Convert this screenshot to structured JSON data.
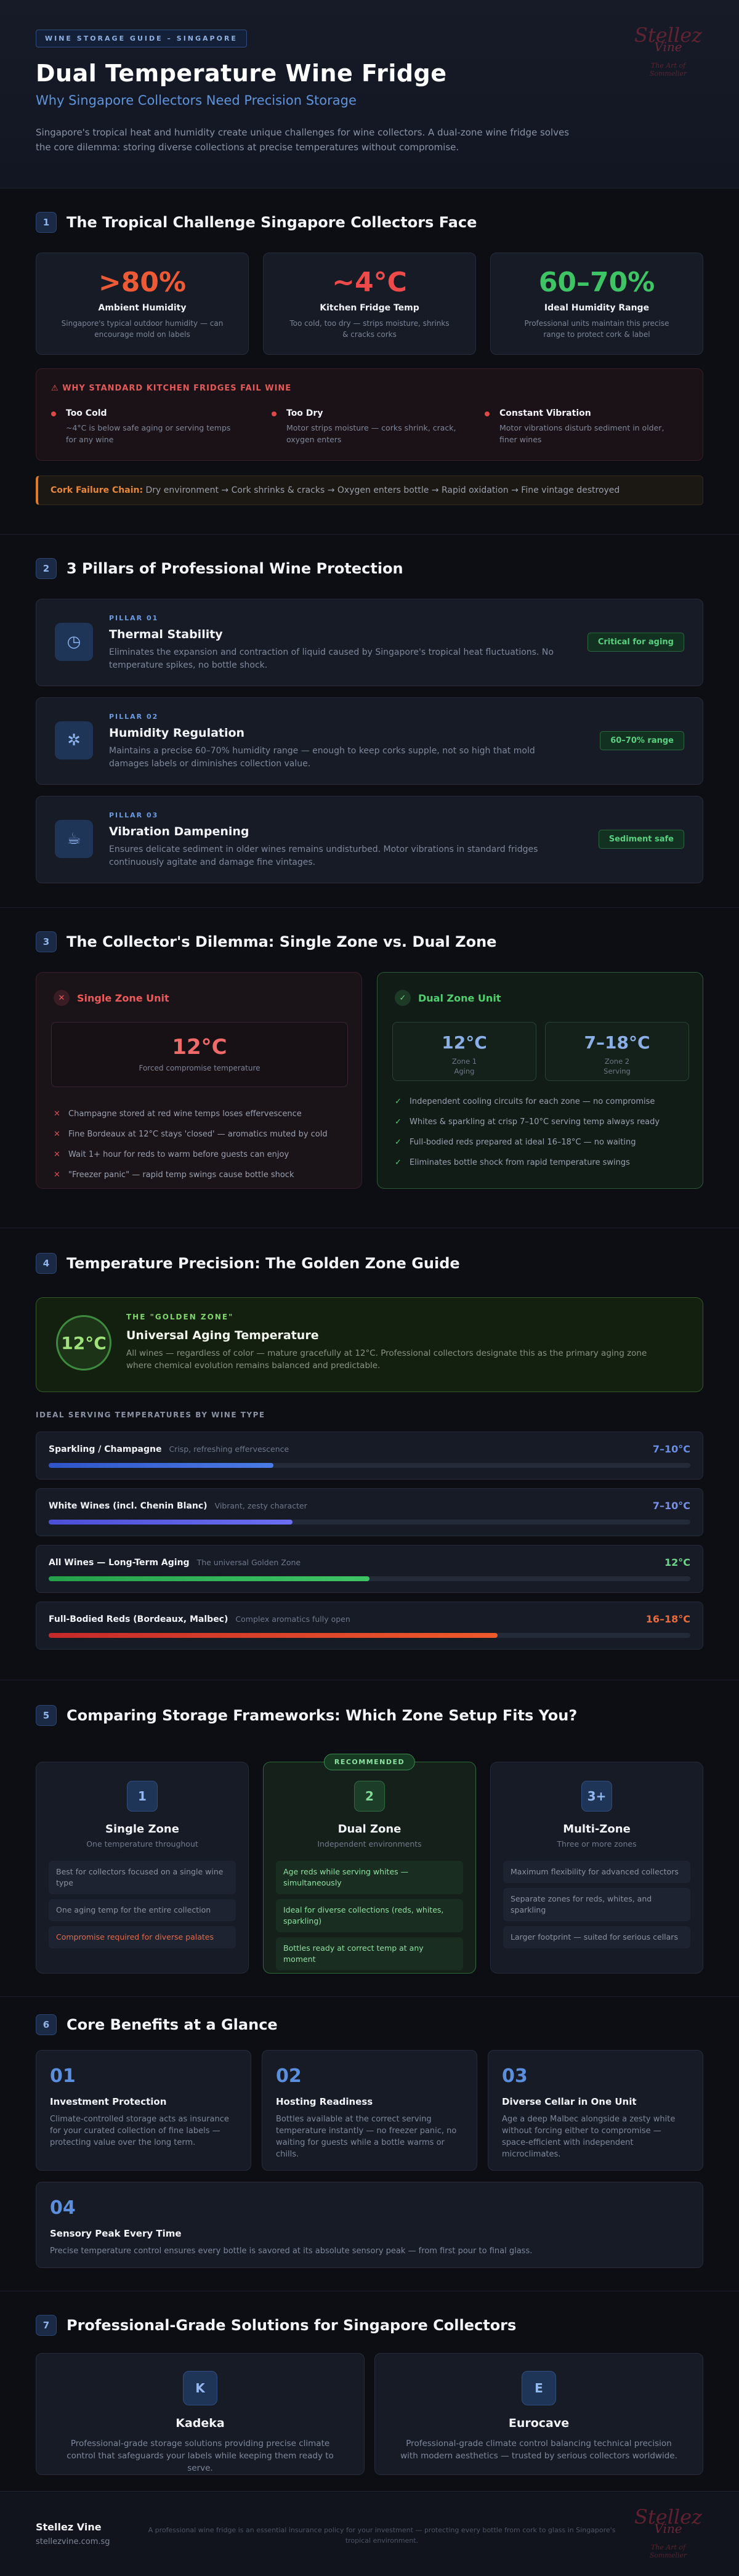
{
  "hero": {
    "tag": "WINE STORAGE GUIDE – SINGAPORE",
    "title": "Dual Temperature Wine Fridge",
    "subtitle": "Why Singapore Collectors Need Precision Storage",
    "description": "Singapore's tropical heat and humidity create unique challenges for wine collectors. A dual-zone wine fridge solves the core dilemma: storing diverse collections at precise temperatures without compromise.",
    "logo": {
      "line1": "Stellez",
      "line2": "Vine",
      "tagline": "The Art of Sommelier"
    }
  },
  "s1": {
    "num": "1",
    "title": "The Tropical Challenge Singapore Collectors Face",
    "stats": [
      {
        "value": ">80%",
        "label": "Ambient Humidity",
        "desc": "Singapore's typical outdoor humidity — can encourage mold on labels",
        "color": "#ee5a35"
      },
      {
        "value": "~4°C",
        "label": "Kitchen Fridge Temp",
        "desc": "Too cold, too dry — strips moisture, shrinks & cracks corks",
        "color": "#ee4a4a"
      },
      {
        "value": "60–70%",
        "label": "Ideal Humidity Range",
        "desc": "Professional units maintain this precise range to protect cork & label",
        "color": "#3fc465"
      }
    ],
    "why_title": "WHY STANDARD KITCHEN FRIDGES FAIL WINE",
    "why": [
      {
        "title": "Too Cold",
        "desc": "~4°C is below safe aging or serving temps for any wine"
      },
      {
        "title": "Too Dry",
        "desc": "Motor strips moisture — corks shrink, crack, oxygen enters"
      },
      {
        "title": "Constant Vibration",
        "desc": "Motor vibrations disturb sediment in older, finer wines"
      }
    ],
    "chain_label": "Cork Failure Chain:",
    "chain_text": "Dry environment → Cork shrinks & cracks → Oxygen enters bottle → Rapid oxidation → Fine vintage destroyed"
  },
  "s2": {
    "num": "2",
    "title": "3 Pillars of Professional Wine Protection",
    "pillars": [
      {
        "tag": "PILLAR 01",
        "title": "Thermal Stability",
        "desc": "Eliminates the expansion and contraction of liquid caused by Singapore's tropical heat fluctuations. No temperature spikes, no bottle shock.",
        "badge": "Critical for aging",
        "icon": "clock-icon",
        "glyph": "◷"
      },
      {
        "tag": "PILLAR 02",
        "title": "Humidity Regulation",
        "desc": "Maintains a precise 60–70% humidity range — enough to keep corks supple, not so high that mold damages labels or diminishes collection value.",
        "badge": "60–70% range",
        "icon": "gear-icon",
        "glyph": "✲"
      },
      {
        "tag": "PILLAR 03",
        "title": "Vibration Dampening",
        "desc": "Ensures delicate sediment in older wines remains undisturbed. Motor vibrations in standard fridges continuously agitate and damage fine vintages.",
        "badge": "Sediment safe",
        "icon": "cup-icon",
        "glyph": "☕"
      }
    ]
  },
  "s3": {
    "num": "3",
    "title": "The Collector's Dilemma: Single Zone vs. Dual Zone",
    "single": {
      "title": "Single Zone Unit",
      "temp": "12°C",
      "temp_label": "Forced compromise temperature",
      "items": [
        "Champagne stored at red wine temps loses effervescence",
        "Fine Bordeaux at 12°C stays 'closed' — aromatics muted by cold",
        "Wait 1+ hour for reds to warm before guests can enjoy",
        "\"Freezer panic\" — rapid temp swings cause bottle shock"
      ]
    },
    "dual": {
      "title": "Dual Zone Unit",
      "zone1_temp": "12°C",
      "zone1_label": "Zone 1",
      "zone1_sub": "Aging",
      "zone2_temp": "7–18°C",
      "zone2_label": "Zone 2",
      "zone2_sub": "Serving",
      "items": [
        "Independent cooling circuits for each zone — no compromise",
        "Whites & sparkling at crisp 7–10°C serving temp always ready",
        "Full-bodied reds prepared at ideal 16–18°C — no waiting",
        "Eliminates bottle shock from rapid temperature swings"
      ]
    }
  },
  "s4": {
    "num": "4",
    "title": "Temperature Precision: The Golden Zone Guide",
    "golden": {
      "temp": "12°C",
      "tag": "THE \"GOLDEN ZONE\"",
      "title": "Universal Aging Temperature",
      "desc": "All wines — regardless of color — mature gracefully at 12°C. Professional collectors designate this as the primary aging zone where chemical evolution remains balanced and predictable."
    },
    "subhead": "IDEAL SERVING TEMPERATURES BY WINE TYPE",
    "serving": [
      {
        "name": "Sparkling / Champagne",
        "note": "Crisp, refreshing effervescence",
        "temp": "7–10°C",
        "color": "#6b8fe8",
        "fill": 0.35,
        "bar": "linear-gradient(90deg,#2f55c8,#4a7be6)"
      },
      {
        "name": "White Wines (incl. Chenin Blanc)",
        "note": "Vibrant, zesty character",
        "temp": "7–10°C",
        "color": "#7a8fe8",
        "fill": 0.38,
        "bar": "linear-gradient(90deg,#4a4fd6,#6a6ef0)"
      },
      {
        "name": "All Wines — Long-Term Aging",
        "note": "The universal Golden Zone",
        "temp": "12°C",
        "color": "#6ed68a",
        "fill": 0.5,
        "bar": "linear-gradient(90deg,#23a04a,#3fc465)"
      },
      {
        "name": "Full-Bodied Reds (Bordeaux, Malbec)",
        "note": "Complex aromatics fully open",
        "temp": "16–18°C",
        "color": "#ee6a3a",
        "fill": 0.7,
        "bar": "linear-gradient(90deg,#c42a2a,#ee5a2a)"
      }
    ]
  },
  "s5": {
    "num": "5",
    "title": "Comparing Storage Frameworks: Which Zone Setup Fits You?",
    "recommended": "RECOMMENDED",
    "frameworks": [
      {
        "num": "1",
        "title": "Single Zone",
        "sub": "One temperature throughout",
        "rows": [
          "Best for collectors focused on a single wine type",
          "One aging temp for the entire collection",
          "Compromise required for diverse palates"
        ]
      },
      {
        "num": "2",
        "title": "Dual Zone",
        "sub": "Independent environments",
        "rows": [
          "Age reds while serving whites — simultaneously",
          "Ideal for diverse collections (reds, whites, sparkling)",
          "Bottles ready at correct temp at any moment"
        ]
      },
      {
        "num": "3+",
        "title": "Multi-Zone",
        "sub": "Three or more zones",
        "rows": [
          "Maximum flexibility for advanced collectors",
          "Separate zones for reds, whites, and sparkling",
          "Larger footprint — suited for serious cellars"
        ]
      }
    ]
  },
  "s6": {
    "num": "6",
    "title": "Core Benefits at a Glance",
    "benefits": [
      {
        "n": "01",
        "title": "Investment Protection",
        "desc": "Climate-controlled storage acts as insurance for your curated collection of fine labels — protecting value over the long term."
      },
      {
        "n": "02",
        "title": "Hosting Readiness",
        "desc": "Bottles available at the correct serving temperature instantly — no freezer panic, no waiting for guests while a bottle warms or chills."
      },
      {
        "n": "03",
        "title": "Diverse Cellar in One Unit",
        "desc": "Age a deep Malbec alongside a zesty white without forcing either to compromise — space-efficient with independent microclimates."
      },
      {
        "n": "04",
        "title": "Sensory Peak Every Time",
        "desc": "Precise temperature control ensures every bottle is savored at its absolute sensory peak — from first pour to final glass."
      }
    ]
  },
  "s7": {
    "num": "7",
    "title": "Professional-Grade Solutions for Singapore Collectors",
    "solutions": [
      {
        "k": "K",
        "name": "Kadeka",
        "desc": "Professional-grade storage solutions providing precise climate control that safeguards your labels while keeping them ready to serve."
      },
      {
        "k": "E",
        "name": "Eurocave",
        "desc": "Professional-grade climate control balancing technical precision with modern aesthetics — trusted by serious collectors worldwide."
      }
    ]
  },
  "footer": {
    "brand": "Stellez Vine",
    "site": "stellezvine.com.sg",
    "disclaimer": "A professional wine fridge is an essential insurance policy for your investment — protecting every bottle from cork to glass in Singapore's tropical environment."
  }
}
